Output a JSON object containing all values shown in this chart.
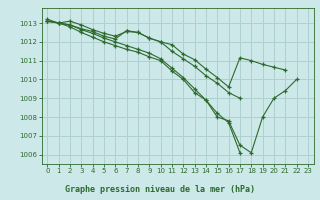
{
  "title": "Graphe pression niveau de la mer (hPa)",
  "background_color": "#cde8e8",
  "grid_color": "#aed0d0",
  "line_color": "#2d6a2d",
  "xlim": [
    -0.5,
    23.5
  ],
  "ylim": [
    1005.5,
    1013.8
  ],
  "yticks": [
    1006,
    1007,
    1008,
    1009,
    1010,
    1011,
    1012,
    1013
  ],
  "xticks": [
    0,
    1,
    2,
    3,
    4,
    5,
    6,
    7,
    8,
    9,
    10,
    11,
    12,
    13,
    14,
    15,
    16,
    17,
    18,
    19,
    20,
    21,
    22,
    23
  ],
  "series": [
    [
      1013.2,
      1013.0,
      1013.1,
      1012.9,
      1012.65,
      1012.45,
      1012.3,
      1012.55,
      1012.5,
      1012.2,
      1012.0,
      1011.85,
      1011.35,
      1011.05,
      1010.55,
      1010.1,
      1009.6,
      1011.15,
      1011.0,
      1010.8,
      1010.65,
      1010.5,
      null,
      null
    ],
    [
      1013.1,
      1013.0,
      1012.9,
      1012.7,
      1012.55,
      1012.3,
      1012.15,
      1012.6,
      1012.5,
      1012.2,
      1012.0,
      1011.5,
      1011.1,
      1010.7,
      1010.2,
      1009.8,
      1009.3,
      1009.0,
      null,
      null,
      null,
      null,
      null,
      null
    ],
    [
      1013.1,
      1013.0,
      1012.8,
      1012.5,
      1012.25,
      1012.0,
      1011.8,
      1011.6,
      1011.45,
      1011.2,
      1011.0,
      1010.45,
      1010.0,
      1009.3,
      1008.9,
      1008.0,
      1007.8,
      1006.5,
      1006.1,
      1008.0,
      1009.0,
      1009.4,
      1010.0,
      null
    ],
    [
      1013.1,
      1013.0,
      1012.9,
      1012.65,
      1012.45,
      1012.2,
      1012.0,
      1011.8,
      1011.6,
      1011.4,
      1011.1,
      1010.6,
      1010.1,
      1009.5,
      1008.9,
      1008.2,
      1007.7,
      1006.1,
      null,
      null,
      null,
      null,
      null,
      null
    ]
  ]
}
